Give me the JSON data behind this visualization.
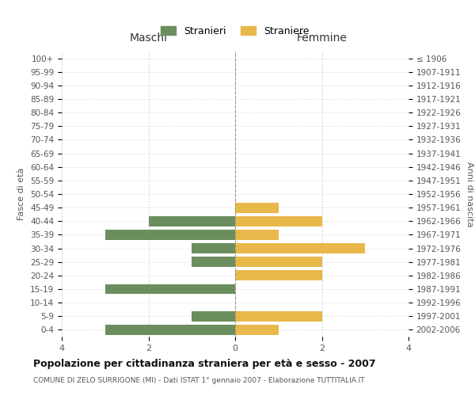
{
  "age_groups_bottom_to_top": [
    "0-4",
    "5-9",
    "10-14",
    "15-19",
    "20-24",
    "25-29",
    "30-34",
    "35-39",
    "40-44",
    "45-49",
    "50-54",
    "55-59",
    "60-64",
    "65-69",
    "70-74",
    "75-79",
    "80-84",
    "85-89",
    "90-94",
    "95-99",
    "100+"
  ],
  "birth_years_bottom_to_top": [
    "2002-2006",
    "1997-2001",
    "1992-1996",
    "1987-1991",
    "1982-1986",
    "1977-1981",
    "1972-1976",
    "1967-1971",
    "1962-1966",
    "1957-1961",
    "1952-1956",
    "1947-1951",
    "1942-1946",
    "1937-1941",
    "1932-1936",
    "1927-1931",
    "1922-1926",
    "1917-1921",
    "1912-1916",
    "1907-1911",
    "≤ 1906"
  ],
  "maschi_bottom_to_top": [
    3,
    1,
    0,
    3,
    0,
    1,
    1,
    3,
    2,
    0,
    0,
    0,
    0,
    0,
    0,
    0,
    0,
    0,
    0,
    0,
    0
  ],
  "femmine_bottom_to_top": [
    1,
    2,
    0,
    0,
    2,
    2,
    3,
    1,
    2,
    1,
    0,
    0,
    0,
    0,
    0,
    0,
    0,
    0,
    0,
    0,
    0
  ],
  "maschi_color": "#6b8e5e",
  "femmine_color": "#e8b84b",
  "title": "Popolazione per cittadinanza straniera per età e sesso - 2007",
  "subtitle": "COMUNE DI ZELO SURRIGONE (MI) - Dati ISTAT 1° gennaio 2007 - Elaborazione TUTTITALIA.IT",
  "legend_maschi": "Stranieri",
  "legend_femmine": "Straniere",
  "xlabel_left": "Maschi",
  "xlabel_right": "Femmine",
  "ylabel_left": "Fasce di età",
  "ylabel_right": "Anni di nascita",
  "xlim": 4,
  "background_color": "#ffffff",
  "grid_color": "#cccccc"
}
